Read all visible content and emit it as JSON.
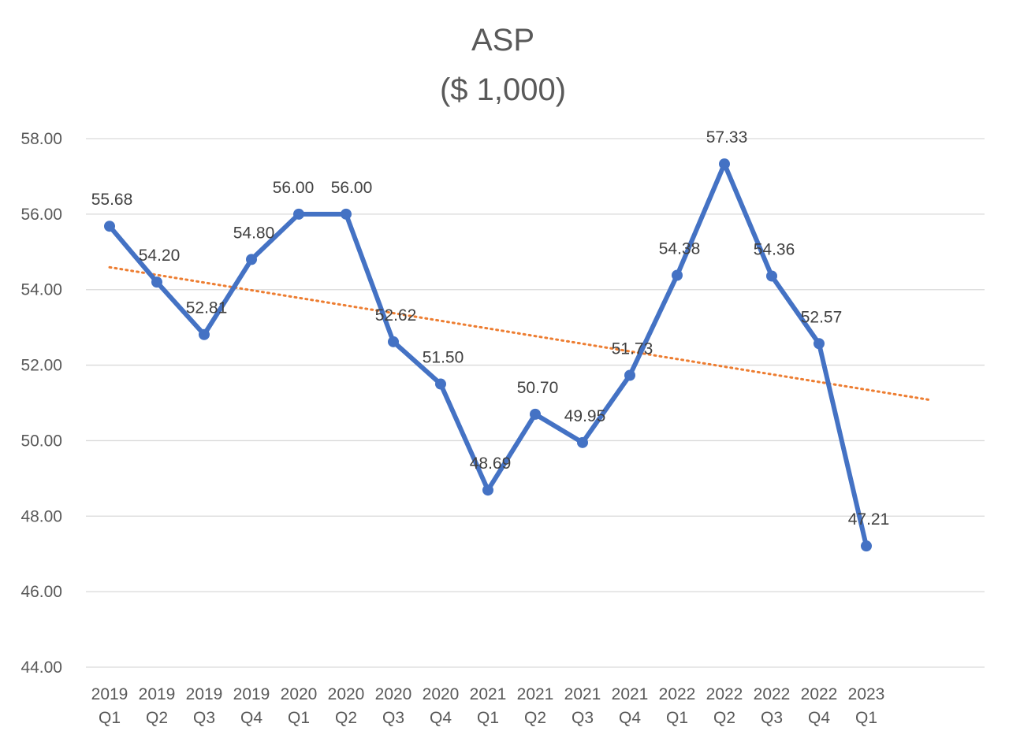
{
  "chart_data": {
    "type": "line",
    "title": [
      "ASP",
      "($ 1,000)"
    ],
    "categories": [
      [
        "2019",
        "Q1"
      ],
      [
        "2019",
        "Q2"
      ],
      [
        "2019",
        "Q3"
      ],
      [
        "2019",
        "Q4"
      ],
      [
        "2020",
        "Q1"
      ],
      [
        "2020",
        "Q2"
      ],
      [
        "2020",
        "Q3"
      ],
      [
        "2020",
        "Q4"
      ],
      [
        "2021",
        "Q1"
      ],
      [
        "2021",
        "Q2"
      ],
      [
        "2021",
        "Q3"
      ],
      [
        "2021",
        "Q4"
      ],
      [
        "2022",
        "Q1"
      ],
      [
        "2022",
        "Q2"
      ],
      [
        "2022",
        "Q3"
      ],
      [
        "2022",
        "Q4"
      ],
      [
        "2023",
        "Q1"
      ]
    ],
    "series": [
      {
        "values": [
          55.68,
          54.2,
          52.81,
          54.8,
          56.0,
          56.0,
          52.62,
          51.5,
          48.69,
          50.7,
          49.95,
          51.73,
          54.38,
          57.33,
          54.36,
          52.57,
          47.21
        ],
        "data_labels": [
          "55.68",
          "54.20",
          "52.81",
          "54.80",
          "56.00",
          "56.00",
          "52.62",
          "51.50",
          "48.69",
          "50.70",
          "49.95",
          "51.73",
          "54.38",
          "57.33",
          "54.36",
          "52.57",
          "47.21"
        ],
        "color": "#4472c4"
      }
    ],
    "trendline": {
      "type": "linear",
      "style": "dotted",
      "color": "#ed7d31"
    },
    "ylim": [
      44,
      58
    ],
    "yticks": [
      44,
      46,
      48,
      50,
      52,
      54,
      56,
      58
    ],
    "ytick_labels": [
      "44.00",
      "46.00",
      "48.00",
      "50.00",
      "52.00",
      "54.00",
      "56.00",
      "58.00"
    ],
    "xlabel": "",
    "ylabel": "",
    "grid": "horizontal",
    "legend": "none"
  }
}
